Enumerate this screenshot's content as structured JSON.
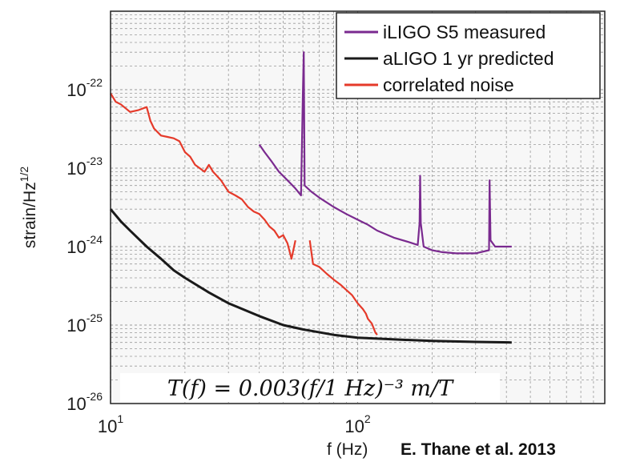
{
  "chart_data": {
    "type": "line",
    "x_scale": "log",
    "y_scale": "log",
    "xlim": [
      10,
      1000
    ],
    "ylim": [
      1e-26,
      1e-21
    ],
    "grid": true,
    "legend_position": "top-right",
    "xlabel_main": "f (Hz)",
    "ylabel": {
      "base": "strain/Hz",
      "exponent": "1/2"
    },
    "x_ticks": [
      {
        "value": 10,
        "base": "10",
        "exp": "1"
      },
      {
        "value": 100,
        "base": "10",
        "exp": "2"
      }
    ],
    "y_ticks": [
      {
        "value": 1e-22,
        "base": "10",
        "exp": "-22"
      },
      {
        "value": 1e-23,
        "base": "10",
        "exp": "-23"
      },
      {
        "value": 1e-24,
        "base": "10",
        "exp": "-24"
      },
      {
        "value": 1e-25,
        "base": "10",
        "exp": "-25"
      },
      {
        "value": 1e-26,
        "base": "10",
        "exp": "-26"
      }
    ],
    "annotation": "T(f) = 0.003(f/1 Hz)⁻³ m/T",
    "credit": "E. Thane et al. 2013",
    "series": [
      {
        "name": "iLIGO S5 measured",
        "color": "#7a2a8f",
        "points": [
          [
            40,
            2e-23
          ],
          [
            42,
            1.6e-23
          ],
          [
            45,
            1.2e-23
          ],
          [
            48,
            9e-24
          ],
          [
            52,
            7e-24
          ],
          [
            56,
            5.5e-24
          ],
          [
            59,
            4.5e-24
          ],
          [
            60,
            9e-23
          ],
          [
            60.5,
            3e-22
          ],
          [
            61,
            6e-24
          ],
          [
            65,
            5e-24
          ],
          [
            70,
            4.2e-24
          ],
          [
            80,
            3.2e-24
          ],
          [
            90,
            2.6e-24
          ],
          [
            100,
            2.2e-24
          ],
          [
            110,
            1.9e-24
          ],
          [
            120,
            1.6e-24
          ],
          [
            140,
            1.3e-24
          ],
          [
            160,
            1.15e-24
          ],
          [
            175,
            1.05e-24
          ],
          [
            178,
            2e-24
          ],
          [
            179,
            8e-24
          ],
          [
            180,
            2e-24
          ],
          [
            185,
            1e-24
          ],
          [
            200,
            9e-25
          ],
          [
            220,
            8.5e-25
          ],
          [
            250,
            8.2e-25
          ],
          [
            300,
            8.2e-25
          ],
          [
            340,
            9e-25
          ],
          [
            342,
            7e-24
          ],
          [
            345,
            1.2e-24
          ],
          [
            360,
            1e-24
          ],
          [
            420,
            1e-24
          ]
        ]
      },
      {
        "name": "aLIGO 1 yr predicted",
        "color": "#1a1a1a",
        "points": [
          [
            10,
            3e-24
          ],
          [
            11,
            2.1e-24
          ],
          [
            12,
            1.6e-24
          ],
          [
            14,
            1e-24
          ],
          [
            16,
            7e-25
          ],
          [
            18,
            5e-25
          ],
          [
            20,
            4e-25
          ],
          [
            25,
            2.6e-25
          ],
          [
            30,
            1.9e-25
          ],
          [
            40,
            1.3e-25
          ],
          [
            50,
            1e-25
          ],
          [
            60,
            8.8e-26
          ],
          [
            80,
            7.5e-26
          ],
          [
            100,
            6.9e-26
          ],
          [
            150,
            6.5e-26
          ],
          [
            200,
            6.3e-26
          ],
          [
            300,
            6.1e-26
          ],
          [
            420,
            6e-26
          ]
        ]
      },
      {
        "name": "correlated noise",
        "color": "#e53a2a",
        "points": [
          [
            10,
            9e-23
          ],
          [
            10.5,
            7e-23
          ],
          [
            11,
            6.5e-23
          ],
          [
            12,
            5.2e-23
          ],
          [
            13,
            5.5e-23
          ],
          [
            14,
            6e-23
          ],
          [
            14.5,
            4e-23
          ],
          [
            15,
            3.2e-23
          ],
          [
            16,
            2.6e-23
          ],
          [
            17,
            2.5e-23
          ],
          [
            18,
            2.4e-23
          ],
          [
            19,
            2.2e-23
          ],
          [
            20,
            1.6e-23
          ],
          [
            21,
            1.4e-23
          ],
          [
            22,
            1.1e-23
          ],
          [
            24,
            9e-24
          ],
          [
            25,
            1.1e-23
          ],
          [
            26,
            9e-24
          ],
          [
            28,
            7e-24
          ],
          [
            30,
            5e-24
          ],
          [
            32,
            4.5e-24
          ],
          [
            34,
            4e-24
          ],
          [
            36,
            3.2e-24
          ],
          [
            38,
            2.8e-24
          ],
          [
            40,
            2.6e-24
          ],
          [
            42,
            2.2e-24
          ],
          [
            44,
            1.8e-24
          ],
          [
            46,
            1.6e-24
          ],
          [
            48,
            1.3e-24
          ],
          [
            50,
            1.4e-24
          ],
          [
            52,
            1.1e-24
          ],
          [
            54,
            7e-25
          ],
          [
            56,
            1.2e-24
          ],
          [
            57,
            null
          ],
          [
            63,
            null
          ],
          [
            64,
            1.2e-24
          ],
          [
            66,
            6e-25
          ],
          [
            70,
            5.5e-25
          ],
          [
            75,
            4.5e-25
          ],
          [
            80,
            3.8e-25
          ],
          [
            85,
            3.3e-25
          ],
          [
            90,
            2.8e-25
          ],
          [
            95,
            2.4e-25
          ],
          [
            100,
            1.9e-25
          ],
          [
            105,
            1.6e-25
          ],
          [
            108,
            1.4e-25
          ],
          [
            110,
            1.2e-25
          ],
          [
            114,
            1.05e-25
          ],
          [
            118,
            8e-26
          ],
          [
            120,
            7.5e-26
          ]
        ]
      }
    ]
  }
}
